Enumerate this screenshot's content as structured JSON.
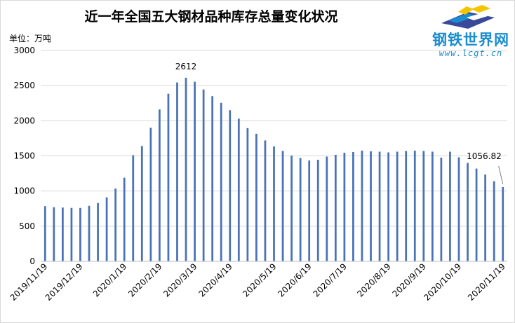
{
  "chart_data": {
    "type": "bar",
    "title": "近一年全国五大钢材品种库存总量变化状况",
    "unit_label": "单位：万吨",
    "ylim": [
      0,
      3000
    ],
    "yticks": [
      0,
      500,
      1000,
      1500,
      2000,
      2500,
      3000
    ],
    "bar_color": "#4a73b5",
    "grid": true,
    "tick_labels": [
      "2019/11/19",
      "2019/12/19",
      "2020/1/19",
      "2020/2/19",
      "2020/3/19",
      "2020/4/19",
      "2020/5/19",
      "2020/6/19",
      "2020/7/19",
      "2020/8/19",
      "2020/9/19",
      "2020/10/19",
      "2020/11/19"
    ],
    "tick_positions": [
      0,
      4,
      9,
      13,
      17,
      21,
      26,
      30,
      34,
      39,
      43,
      47,
      52
    ],
    "values": [
      785,
      770,
      765,
      760,
      760,
      790,
      830,
      910,
      1035,
      1190,
      1510,
      1640,
      1900,
      2160,
      2385,
      2545,
      2612,
      2555,
      2445,
      2350,
      2255,
      2150,
      2030,
      1895,
      1815,
      1720,
      1635,
      1570,
      1505,
      1470,
      1435,
      1445,
      1490,
      1515,
      1545,
      1555,
      1575,
      1565,
      1560,
      1550,
      1560,
      1570,
      1575,
      1570,
      1560,
      1475,
      1560,
      1480,
      1400,
      1320,
      1235,
      1140,
      1056.82
    ],
    "data_labels": [
      {
        "index": 16,
        "text": "2612"
      },
      {
        "index": 52,
        "text": "1056.82"
      }
    ]
  },
  "logo": {
    "name": "钢铁世界网",
    "url": "www.lcgt.cn",
    "colors": [
      "#1a8ccf",
      "#f5c400",
      "#3a4a9a"
    ]
  }
}
